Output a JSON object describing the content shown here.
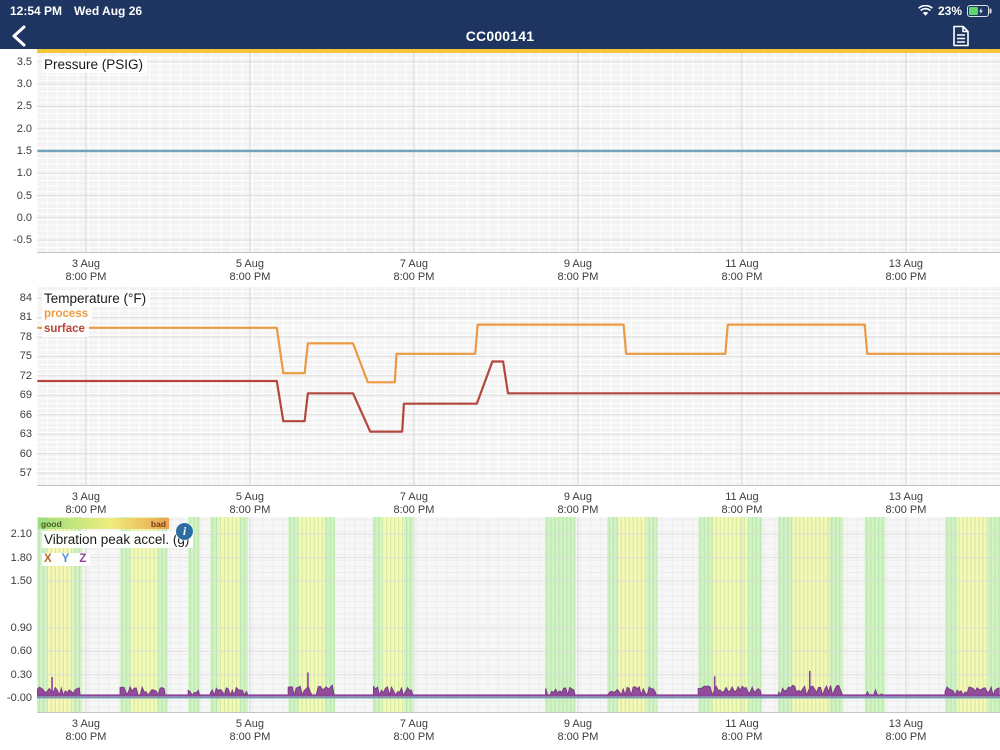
{
  "status_bar": {
    "time": "12:54 PM",
    "date": "Wed Aug 26",
    "battery_percent": "23%"
  },
  "nav": {
    "title": "CC000141"
  },
  "colors": {
    "navy": "#1d3560",
    "accent_yellow": "#f2c636",
    "pressure_line": "#72a3bc",
    "process_line": "#ec9a42",
    "surface_line": "#b2473c",
    "vib_x": "#b06a2a",
    "vib_y": "#4a90d9",
    "vib_z": "#8d4397",
    "band_green": "#cdf2bd",
    "band_green_stripe": "#86cc74",
    "band_yellow": "#f7f8b6",
    "band_yellow_stripe": "#d9db86",
    "info_blue": "#2e6da4"
  },
  "x_axis": {
    "xlim": [
      3.236,
      14.98
    ],
    "ticks": [
      {
        "v": 3.833,
        "day": "3 Aug",
        "time": "8:00 PM"
      },
      {
        "v": 5.833,
        "day": "5 Aug",
        "time": "8:00 PM"
      },
      {
        "v": 7.833,
        "day": "7 Aug",
        "time": "8:00 PM"
      },
      {
        "v": 9.833,
        "day": "9 Aug",
        "time": "8:00 PM"
      },
      {
        "v": 11.833,
        "day": "11 Aug",
        "time": "8:00 PM"
      },
      {
        "v": 13.833,
        "day": "13 Aug",
        "time": "8:00 PM"
      }
    ]
  },
  "chart_data": [
    {
      "type": "line",
      "title": "Pressure (PSIG)",
      "ylim": [
        -0.79,
        3.7
      ],
      "y_tick_values": [
        3.5,
        3.0,
        2.5,
        2.0,
        1.5,
        1.0,
        0.5,
        0.0,
        -0.5
      ],
      "y_tick_labels": [
        "3.5",
        "3.0",
        "2.5",
        "2.0",
        "1.5",
        "1.0",
        "0.5",
        "0.0",
        "-0.5"
      ],
      "y_minor_step": 0.125,
      "series": [
        {
          "name": "pressure",
          "color": "#72a3bc",
          "width": 2.6,
          "points": [
            [
              3.24,
              1.5
            ],
            [
              14.98,
              1.5
            ]
          ]
        }
      ]
    },
    {
      "type": "line",
      "title": "Temperature (°F)",
      "legend": [
        {
          "label": "process",
          "color": "#ec9a42"
        },
        {
          "label": "surface",
          "color": "#b2473c"
        }
      ],
      "ylim": [
        55.0,
        85.7
      ],
      "y_tick_values": [
        84,
        81,
        78,
        75,
        72,
        69,
        66,
        63,
        60,
        57
      ],
      "y_tick_labels": [
        "84",
        "81",
        "78",
        "75",
        "72",
        "69",
        "66",
        "63",
        "60",
        "57"
      ],
      "y_minor_step": 0.75,
      "series": [
        {
          "name": "process",
          "color": "#ec9a42",
          "width": 2.2,
          "points": [
            [
              3.24,
              79.4
            ],
            [
              6.16,
              79.4
            ],
            [
              6.24,
              72.4
            ],
            [
              6.5,
              72.4
            ],
            [
              6.54,
              77.0
            ],
            [
              7.09,
              77.0
            ],
            [
              7.27,
              71.0
            ],
            [
              7.6,
              71.0
            ],
            [
              7.62,
              75.4
            ],
            [
              8.58,
              75.4
            ],
            [
              8.61,
              79.9
            ],
            [
              10.39,
              79.9
            ],
            [
              10.42,
              75.4
            ],
            [
              11.63,
              75.4
            ],
            [
              11.66,
              79.9
            ],
            [
              13.33,
              79.9
            ],
            [
              13.36,
              75.4
            ],
            [
              14.98,
              75.4
            ]
          ]
        },
        {
          "name": "surface",
          "color": "#b2473c",
          "width": 2.2,
          "points": [
            [
              3.24,
              71.2
            ],
            [
              6.16,
              71.2
            ],
            [
              6.24,
              65.0
            ],
            [
              6.5,
              65.0
            ],
            [
              6.54,
              69.3
            ],
            [
              7.09,
              69.3
            ],
            [
              7.3,
              63.4
            ],
            [
              7.69,
              63.4
            ],
            [
              7.71,
              67.7
            ],
            [
              8.6,
              67.7
            ],
            [
              8.79,
              74.2
            ],
            [
              8.92,
              74.2
            ],
            [
              8.98,
              69.3
            ],
            [
              14.98,
              69.3
            ]
          ]
        }
      ]
    },
    {
      "type": "line",
      "title": "Vibration peak accel. (g)",
      "legend": [
        {
          "label": "X",
          "color": "#b06a2a"
        },
        {
          "label": "Y",
          "color": "#4a90d9"
        },
        {
          "label": "Z",
          "color": "#8d4397"
        }
      ],
      "quality": {
        "good_label": "good",
        "bad_label": "bad"
      },
      "info_icon_glyph": "i",
      "ylim": [
        -0.19,
        2.32
      ],
      "y_tick_values": [
        2.1,
        1.8,
        1.5,
        0.9,
        0.6,
        0.3,
        0.0
      ],
      "y_tick_labels": [
        "2.10",
        "1.80",
        "1.50",
        "0.90",
        "0.60",
        "0.30",
        "-0.00"
      ],
      "y_minor_step": 0.075,
      "baseline_z": 0.035,
      "baseline_y": 0.008,
      "bands": [
        {
          "x0": 3.24,
          "x1": 3.79,
          "yellow": true
        },
        {
          "x0": 4.25,
          "x1": 4.83,
          "yellow": true
        },
        {
          "x0": 5.08,
          "x1": 5.22,
          "yellow": false
        },
        {
          "x0": 5.35,
          "x1": 5.81,
          "yellow": true
        },
        {
          "x0": 6.3,
          "x1": 6.87,
          "yellow": true
        },
        {
          "x0": 7.33,
          "x1": 7.82,
          "yellow": true
        },
        {
          "x0": 9.43,
          "x1": 9.8,
          "yellow": false
        },
        {
          "x0": 10.19,
          "x1": 10.8,
          "yellow": true
        },
        {
          "x0": 11.3,
          "x1": 12.08,
          "yellow": true
        },
        {
          "x0": 12.27,
          "x1": 13.07,
          "yellow": true
        },
        {
          "x0": 13.33,
          "x1": 13.58,
          "yellow": false
        },
        {
          "x0": 14.31,
          "x1": 14.98,
          "yellow": true
        }
      ],
      "bursts": [
        {
          "x0": 3.24,
          "x1": 3.76,
          "h": 0.17
        },
        {
          "x0": 4.25,
          "x1": 4.8,
          "h": 0.17
        },
        {
          "x0": 5.08,
          "x1": 5.22,
          "h": 0.13
        },
        {
          "x0": 5.35,
          "x1": 5.81,
          "h": 0.16
        },
        {
          "x0": 6.3,
          "x1": 6.87,
          "h": 0.2
        },
        {
          "x0": 7.34,
          "x1": 7.82,
          "h": 0.18
        },
        {
          "x0": 9.44,
          "x1": 9.8,
          "h": 0.16
        },
        {
          "x0": 10.19,
          "x1": 10.79,
          "h": 0.17
        },
        {
          "x0": 11.3,
          "x1": 12.07,
          "h": 0.18
        },
        {
          "x0": 12.28,
          "x1": 13.06,
          "h": 0.19
        },
        {
          "x0": 13.34,
          "x1": 13.57,
          "h": 0.12,
          "sparse": true
        },
        {
          "x0": 14.31,
          "x1": 14.97,
          "h": 0.17
        }
      ],
      "spikes": [
        [
          3.42,
          0.27
        ],
        [
          6.54,
          0.33
        ],
        [
          11.5,
          0.28
        ],
        [
          12.66,
          0.35
        ]
      ]
    }
  ]
}
